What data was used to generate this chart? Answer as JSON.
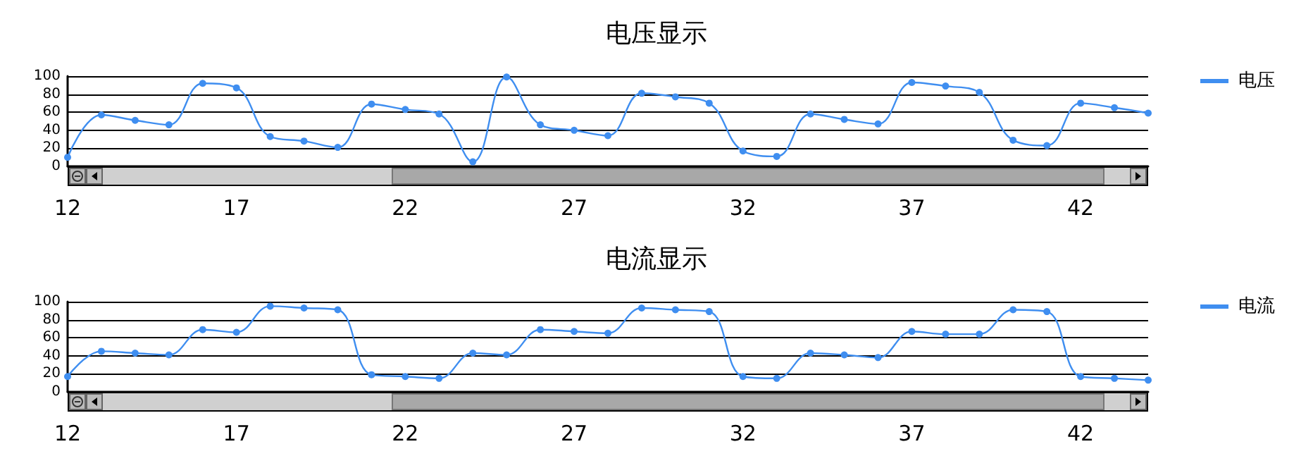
{
  "chart_data": [
    {
      "type": "line",
      "title": "电压显示",
      "x": [
        12,
        13,
        14,
        15,
        16,
        17,
        18,
        19,
        20,
        21,
        22,
        23,
        24,
        25,
        26,
        27,
        28,
        29,
        30,
        31,
        32,
        33,
        34,
        35,
        36,
        37,
        38,
        39,
        40,
        41,
        42,
        43,
        44
      ],
      "series": [
        {
          "name": "电压",
          "color": "#3f8ef0",
          "values": [
            10,
            57,
            51,
            46,
            92,
            87,
            33,
            28,
            21,
            69,
            63,
            58,
            5,
            99,
            46,
            40,
            34,
            81,
            77,
            70,
            17,
            11,
            58,
            52,
            47,
            93,
            89,
            82,
            29,
            23,
            70,
            65,
            59
          ]
        }
      ],
      "xlim": [
        12,
        44
      ],
      "xticks": [
        12,
        17,
        22,
        27,
        32,
        37,
        42
      ],
      "ylim": [
        0,
        100
      ],
      "yticks": [
        0,
        20,
        40,
        60,
        80,
        100
      ],
      "grid": "y",
      "legend": "top right",
      "marker": "circle",
      "line_style": "solid"
    },
    {
      "type": "line",
      "title": "电流显示",
      "x": [
        12,
        13,
        14,
        15,
        16,
        17,
        18,
        19,
        20,
        21,
        22,
        23,
        24,
        25,
        26,
        27,
        28,
        29,
        30,
        31,
        32,
        33,
        34,
        35,
        36,
        37,
        38,
        39,
        40,
        41,
        42,
        43,
        44
      ],
      "series": [
        {
          "name": "电流",
          "color": "#3f8ef0",
          "values": [
            17,
            45,
            43,
            41,
            69,
            66,
            95,
            93,
            91,
            19,
            17,
            15,
            43,
            41,
            69,
            67,
            65,
            93,
            91,
            89,
            17,
            15,
            43,
            41,
            38,
            67,
            64,
            64,
            91,
            89,
            17,
            15,
            13
          ]
        }
      ],
      "xlim": [
        12,
        44
      ],
      "xticks": [
        12,
        17,
        22,
        27,
        32,
        37,
        42
      ],
      "ylim": [
        0,
        100
      ],
      "yticks": [
        0,
        20,
        40,
        60,
        80,
        100
      ],
      "grid": "y",
      "legend": "top right",
      "marker": "circle",
      "line_style": "solid"
    }
  ]
}
